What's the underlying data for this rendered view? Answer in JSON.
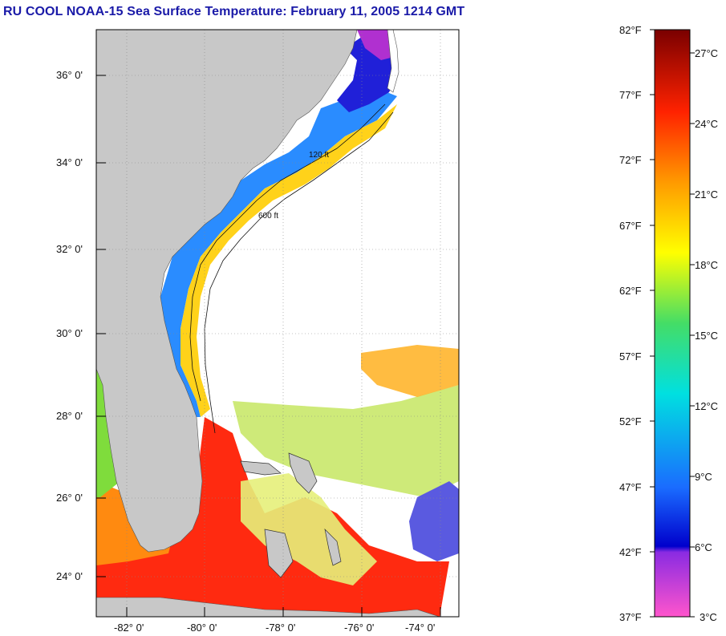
{
  "title": "RU COOL  NOAA-15  Sea Surface Temperature:  February 11, 2005 1214 GMT",
  "map": {
    "lat_labels": [
      "36° 0'",
      "34° 0'",
      "32° 0'",
      "30° 0'",
      "28° 0'",
      "26° 0'",
      "24° 0'"
    ],
    "lon_labels": [
      "-82° 0'",
      "-80° 0'",
      "-78° 0'",
      "-76° 0'",
      "-74° 0'"
    ],
    "isobath_labels": [
      "120 ft",
      "600 ft"
    ],
    "colors": {
      "land": "#c8c8c8",
      "no_data": "#ffffff",
      "grid": "#888888"
    }
  },
  "colorbar": {
    "fahrenheit": [
      "82°F",
      "77°F",
      "72°F",
      "67°F",
      "62°F",
      "57°F",
      "52°F",
      "47°F",
      "42°F",
      "37°F"
    ],
    "celsius": [
      "27°C",
      "24°C",
      "21°C",
      "18°C",
      "15°C",
      "12°C",
      "9°C",
      "6°C",
      "3°C"
    ]
  }
}
